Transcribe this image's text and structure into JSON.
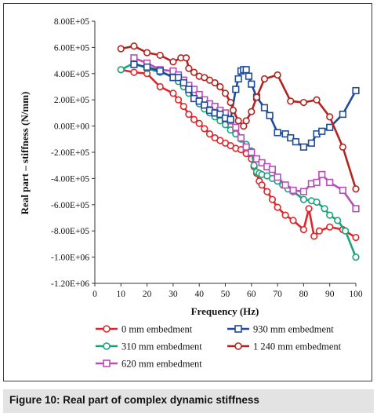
{
  "caption": {
    "label": "Figure 10:",
    "text": "Real part of complex dynamic stiffness"
  },
  "chart_data": {
    "type": "line",
    "title": "",
    "xlabel": "Frequency (Hz)",
    "ylabel": "Real part – stiffness (N/mm)",
    "xlim": [
      0,
      100
    ],
    "ylim": [
      -1200000,
      800000
    ],
    "xticks": [
      "0",
      "10",
      "20",
      "30",
      "40",
      "50",
      "60",
      "70",
      "80",
      "90",
      "100"
    ],
    "yticks": [
      "8.00E+05",
      "6.00E+05",
      "4.00E+05",
      "2.00E+05",
      "0.00E+00",
      "-2.00E+05",
      "-4.00E+05",
      "-6.00E+05",
      "-8.00E+05",
      "-1.00E+06",
      "-1.20E+06"
    ],
    "grid": false,
    "legend_position": "bottom",
    "series": [
      {
        "name": "0 mm embedment",
        "color": "#e0262b",
        "marker": "circle",
        "x": [
          10,
          15,
          20,
          25,
          30,
          32,
          34,
          36,
          38,
          40,
          42,
          44,
          46,
          48,
          50,
          52,
          54,
          56,
          58,
          60,
          61,
          62,
          63,
          64,
          66,
          68,
          70,
          73,
          76,
          80,
          82,
          84,
          86,
          90,
          95,
          100
        ],
        "y": [
          430000,
          410000,
          400000,
          300000,
          250000,
          200000,
          150000,
          90000,
          50000,
          20000,
          -20000,
          -60000,
          -90000,
          -110000,
          -130000,
          -150000,
          -170000,
          -180000,
          -210000,
          -250000,
          -310000,
          -360000,
          -420000,
          -450000,
          -500000,
          -560000,
          -620000,
          -680000,
          -720000,
          -790000,
          -630000,
          -840000,
          -800000,
          -770000,
          -790000,
          -850000
        ]
      },
      {
        "name": "310 mm embedment",
        "color": "#1aa37a",
        "marker": "circle",
        "x": [
          10,
          15,
          20,
          25,
          30,
          32,
          34,
          36,
          38,
          40,
          42,
          44,
          46,
          48,
          50,
          52,
          54,
          56,
          58,
          60,
          61,
          62,
          63,
          64,
          66,
          68,
          70,
          72,
          74,
          76,
          80,
          83,
          85,
          88,
          90,
          93,
          96,
          100
        ],
        "y": [
          430000,
          480000,
          440000,
          410000,
          380000,
          340000,
          300000,
          250000,
          210000,
          170000,
          130000,
          100000,
          70000,
          40000,
          10000,
          -30000,
          -60000,
          -100000,
          -140000,
          -190000,
          -300000,
          -350000,
          -360000,
          -370000,
          -380000,
          -400000,
          -420000,
          -450000,
          -480000,
          -500000,
          -560000,
          -570000,
          -580000,
          -630000,
          -680000,
          -720000,
          -800000,
          -1000000
        ]
      },
      {
        "name": "620 mm embedment",
        "color": "#b64fb6",
        "marker": "square",
        "x": [
          15,
          20,
          25,
          30,
          32,
          34,
          36,
          38,
          40,
          42,
          44,
          46,
          48,
          50,
          52,
          54,
          56,
          58,
          60,
          62,
          64,
          66,
          68,
          70,
          73,
          76,
          80,
          83,
          85,
          87,
          90,
          95,
          100
        ],
        "y": [
          520000,
          480000,
          430000,
          420000,
          390000,
          350000,
          310000,
          280000,
          240000,
          200000,
          170000,
          150000,
          120000,
          100000,
          40000,
          -10000,
          -90000,
          -160000,
          -200000,
          -250000,
          -280000,
          -310000,
          -330000,
          -390000,
          -450000,
          -490000,
          -500000,
          -440000,
          -430000,
          -370000,
          -430000,
          -490000,
          -630000
        ]
      },
      {
        "name": "930 mm embedment",
        "color": "#1e4b9a",
        "marker": "square",
        "x": [
          15,
          20,
          25,
          30,
          32,
          34,
          36,
          38,
          40,
          42,
          44,
          46,
          48,
          50,
          52,
          54,
          55,
          56,
          57,
          58,
          59,
          60,
          62,
          65,
          67,
          70,
          73,
          75,
          77,
          80,
          83,
          85,
          87,
          90,
          95,
          100
        ],
        "y": [
          470000,
          450000,
          420000,
          370000,
          370000,
          330000,
          280000,
          210000,
          190000,
          160000,
          120000,
          100000,
          90000,
          60000,
          50000,
          280000,
          360000,
          420000,
          430000,
          430000,
          380000,
          320000,
          220000,
          140000,
          80000,
          -50000,
          -60000,
          -90000,
          -120000,
          -160000,
          -130000,
          -60000,
          -40000,
          -10000,
          90000,
          270000
        ]
      },
      {
        "name": "1 240 mm embedment",
        "color": "#b3241f",
        "marker": "circle",
        "x": [
          10,
          15,
          20,
          25,
          30,
          33,
          35,
          36,
          38,
          40,
          42,
          44,
          46,
          48,
          50,
          52,
          53,
          55,
          57,
          58,
          60,
          62,
          65,
          70,
          75,
          80,
          85,
          90,
          95,
          100
        ],
        "y": [
          590000,
          610000,
          560000,
          540000,
          490000,
          520000,
          520000,
          440000,
          410000,
          380000,
          370000,
          350000,
          330000,
          300000,
          250000,
          180000,
          120000,
          40000,
          0,
          40000,
          110000,
          220000,
          360000,
          390000,
          190000,
          180000,
          200000,
          70000,
          -160000,
          -480000
        ]
      }
    ]
  }
}
